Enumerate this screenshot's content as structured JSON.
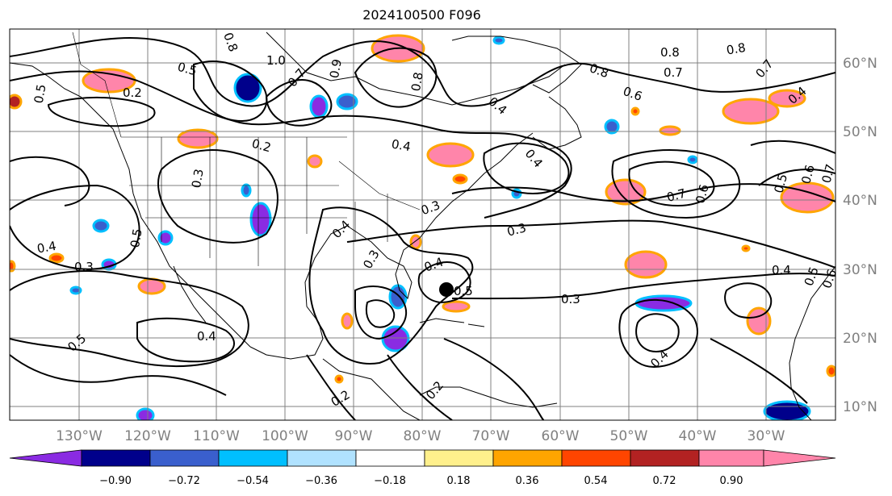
{
  "title": "2024100500 F096",
  "lat_labels": [
    "60°N",
    "50°N",
    "40°N",
    "30°N",
    "20°N",
    "10°N"
  ],
  "lon_labels": [
    "130°W",
    "120°W",
    "110°W",
    "100°W",
    "90°W",
    "80°W",
    "70°W",
    "60°W",
    "50°W",
    "40°W",
    "30°W"
  ],
  "colorbar": {
    "ticks": [
      "−0.90",
      "−0.72",
      "−0.54",
      "−0.36",
      "−0.18",
      "0.18",
      "0.36",
      "0.54",
      "0.72",
      "0.90"
    ],
    "colors": [
      "#8a2be2",
      "#00008b",
      "#3a5fcd",
      "#00bfff",
      "#b0e2ff",
      "#ffffff",
      "#fff08c",
      "#ffa500",
      "#ff4500",
      "#b22222",
      "#ff85aa",
      "#ff85aa"
    ]
  },
  "contour_labels": [
    "0.2",
    "0.5",
    "0.8",
    "1.0",
    "0.7",
    "0.9",
    "0.8",
    "0.4",
    "0.8",
    "0.6",
    "0.8",
    "0.7",
    "0.8",
    "0.7",
    "0.4",
    "0.2",
    "0.4",
    "0.3",
    "0.4",
    "0.7",
    "0.6",
    "0.5",
    "0.6",
    "0.7",
    "0.4",
    "0.5",
    "0.3",
    "0.3",
    "0.4",
    "0.3",
    "0.4",
    "0.5",
    "0.3",
    "0.4",
    "0.5",
    "0.6",
    "0.4",
    "0.5",
    "0.4",
    "0.3",
    "0.2",
    "0.2",
    "0.5"
  ],
  "storm_marker": "black-dot"
}
